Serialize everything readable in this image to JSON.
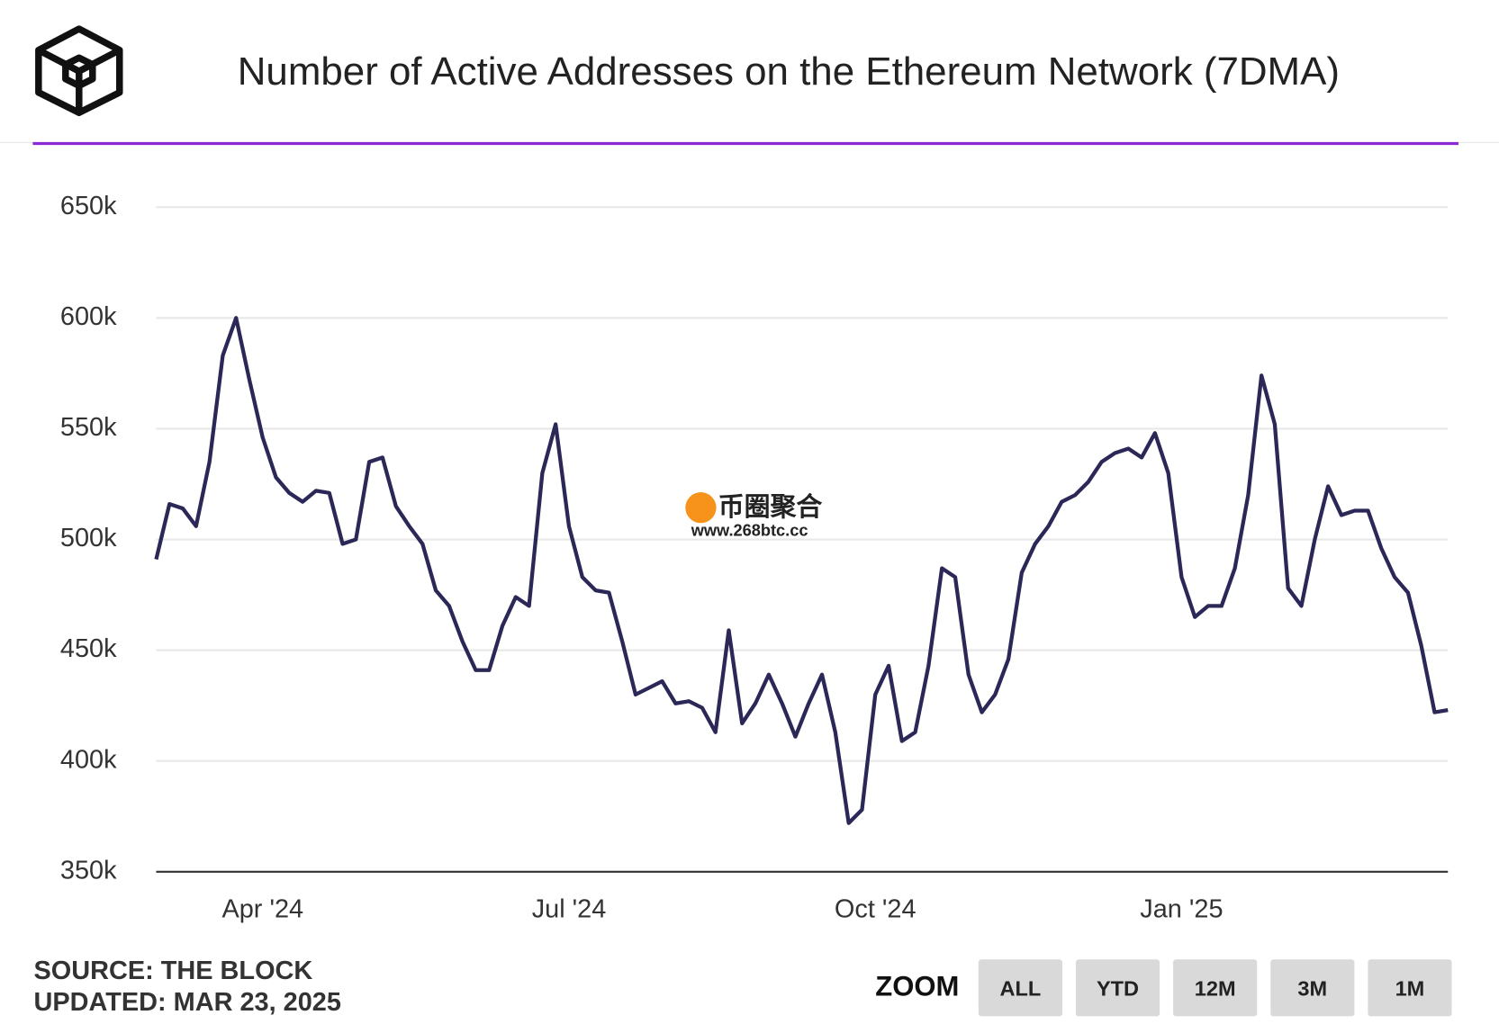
{
  "chart_data": {
    "type": "line",
    "title": "Number of Active Addresses on the Ethereum Network (7DMA)",
    "categories": [
      null,
      null,
      null,
      null,
      null,
      null,
      null,
      null,
      "Apr '24",
      null,
      null,
      null,
      null,
      null,
      null,
      null,
      null,
      null,
      null,
      null,
      null,
      null,
      null,
      null,
      null,
      null,
      null,
      null,
      null,
      null,
      null,
      "Jul '24",
      null,
      null,
      null,
      null,
      null,
      null,
      null,
      null,
      null,
      null,
      null,
      null,
      null,
      null,
      null,
      null,
      null,
      null,
      null,
      null,
      null,
      null,
      "Oct '24",
      null,
      null,
      null,
      null,
      null,
      null,
      null,
      null,
      null,
      null,
      null,
      null,
      null,
      null,
      null,
      null,
      null,
      null,
      null,
      null,
      null,
      null,
      "Jan '25",
      null,
      null,
      null,
      null,
      null,
      null,
      null,
      null,
      null,
      null,
      null,
      null,
      null,
      null,
      null,
      null,
      null,
      null,
      null,
      null
    ],
    "series": [
      {
        "name": "Active Addresses",
        "color": "#2b2858",
        "values": [
          491000,
          516000,
          514000,
          506000,
          535000,
          583000,
          600000,
          572000,
          546000,
          528000,
          521000,
          517000,
          522000,
          521000,
          498000,
          500000,
          535000,
          537000,
          515000,
          506000,
          498000,
          477000,
          470000,
          454000,
          441000,
          441000,
          461000,
          474000,
          470000,
          530000,
          552000,
          506000,
          483000,
          477000,
          476000,
          454000,
          430000,
          433000,
          436000,
          426000,
          427000,
          424000,
          413000,
          459000,
          417000,
          426000,
          439000,
          426000,
          411000,
          426000,
          439000,
          413000,
          372000,
          378000,
          430000,
          443000,
          409000,
          413000,
          443000,
          487000,
          483000,
          439000,
          422000,
          430000,
          446000,
          485000,
          498000,
          506000,
          517000,
          520000,
          526000,
          535000,
          539000,
          541000,
          537000,
          548000,
          530000,
          483000,
          465000,
          470000,
          470000,
          487000,
          520000,
          574000,
          552000,
          478000,
          470000,
          500000,
          524000,
          511000,
          513000,
          513000,
          496000,
          483000,
          476000,
          452000,
          422000,
          423000
        ]
      }
    ],
    "ylim": [
      350000,
      650000
    ],
    "yticks": [
      {
        "value": 350000,
        "label": "350k"
      },
      {
        "value": 400000,
        "label": "400k"
      },
      {
        "value": 450000,
        "label": "450k"
      },
      {
        "value": 500000,
        "label": "500k"
      },
      {
        "value": 550000,
        "label": "550k"
      },
      {
        "value": 600000,
        "label": "600k"
      },
      {
        "value": 650000,
        "label": "650k"
      }
    ],
    "grid": true,
    "source": "SOURCE: THE BLOCK",
    "updated": "UPDATED: MAR 23, 2025",
    "zoom_label": "ZOOM",
    "zoom_buttons": [
      "ALL",
      "YTD",
      "12M",
      "3M",
      "1M"
    ],
    "watermark": [
      "币圈聚合",
      "www.268btc.cc"
    ]
  }
}
